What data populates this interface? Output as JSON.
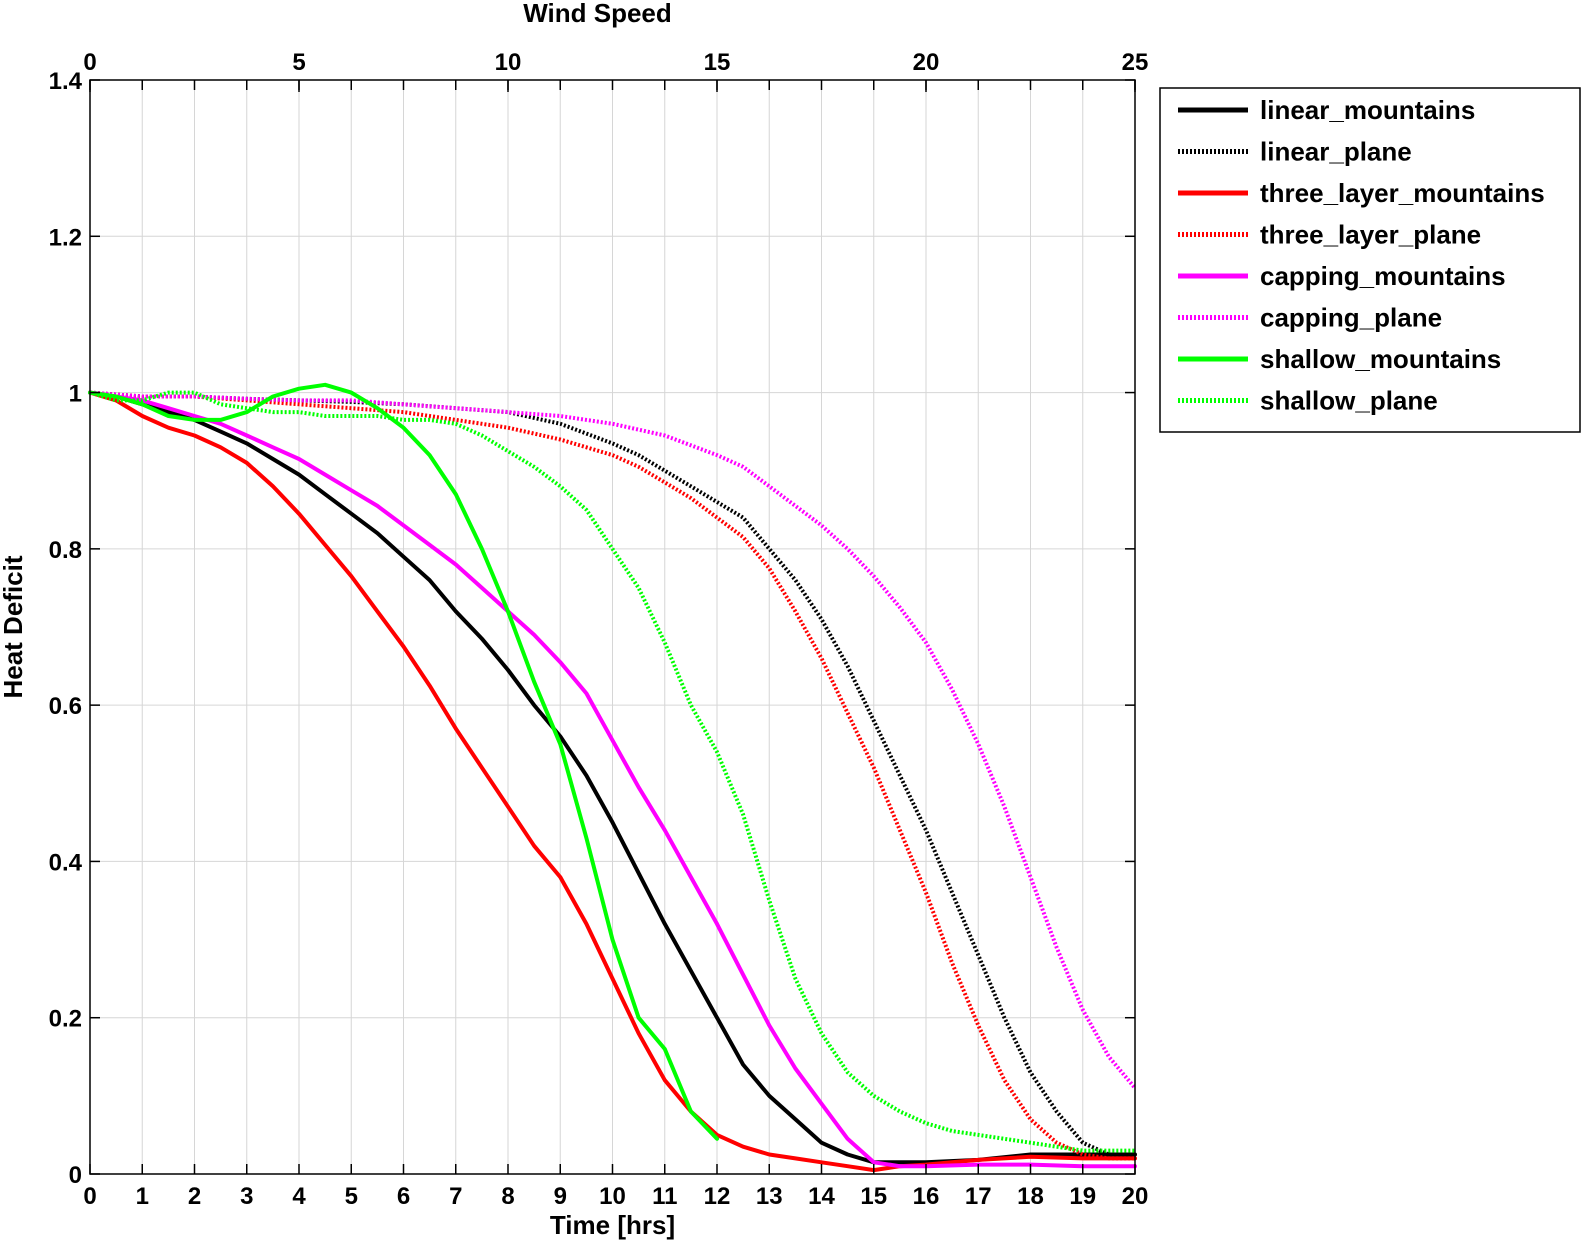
{
  "chart_data": {
    "type": "line",
    "xlabel": "Time [hrs]",
    "ylabel": "Heat Deficit",
    "x2label": "Wind Speed",
    "xlim": [
      0,
      20
    ],
    "ylim": [
      0,
      1.4
    ],
    "x2lim": [
      0,
      25
    ],
    "xticks": [
      "0",
      "1",
      "2",
      "3",
      "4",
      "5",
      "6",
      "7",
      "8",
      "9",
      "10",
      "11",
      "12",
      "13",
      "14",
      "15",
      "16",
      "17",
      "18",
      "19",
      "20"
    ],
    "yticks": [
      "0",
      "0.2",
      "0.4",
      "0.6",
      "0.8",
      "1",
      "1.2",
      "1.4"
    ],
    "x2ticks": [
      "0",
      "5",
      "10",
      "15",
      "20",
      "25"
    ],
    "grid": true,
    "legend_position": "outside-top-right",
    "series": [
      {
        "name": "linear_mountains",
        "color": "#000000",
        "style": "solid",
        "x": [
          0,
          0.5,
          1,
          1.5,
          2,
          2.5,
          3,
          3.5,
          4,
          4.5,
          5,
          5.5,
          6,
          6.5,
          7,
          7.5,
          8,
          8.5,
          9,
          9.5,
          10,
          10.5,
          11,
          11.5,
          12,
          12.5,
          13,
          13.5,
          14,
          14.5,
          15,
          16,
          17,
          18,
          19,
          20
        ],
        "y": [
          1.0,
          0.995,
          0.985,
          0.975,
          0.965,
          0.95,
          0.935,
          0.915,
          0.895,
          0.87,
          0.845,
          0.82,
          0.79,
          0.76,
          0.72,
          0.685,
          0.645,
          0.6,
          0.56,
          0.51,
          0.45,
          0.385,
          0.32,
          0.26,
          0.2,
          0.14,
          0.1,
          0.07,
          0.04,
          0.025,
          0.015,
          0.015,
          0.018,
          0.025,
          0.025,
          0.025
        ]
      },
      {
        "name": "linear_plane",
        "color": "#000000",
        "style": "dotted",
        "x": [
          0,
          1,
          2,
          3,
          4,
          5,
          6,
          7,
          8,
          9,
          10,
          10.5,
          11,
          11.5,
          12,
          12.5,
          13,
          13.5,
          14,
          14.5,
          15,
          15.5,
          16,
          16.5,
          17,
          17.5,
          18,
          18.5,
          19,
          19.5,
          20
        ],
        "y": [
          1.0,
          0.995,
          0.995,
          0.992,
          0.99,
          0.988,
          0.985,
          0.98,
          0.975,
          0.96,
          0.935,
          0.92,
          0.9,
          0.88,
          0.86,
          0.84,
          0.8,
          0.76,
          0.71,
          0.65,
          0.58,
          0.51,
          0.44,
          0.36,
          0.28,
          0.2,
          0.13,
          0.08,
          0.04,
          0.025,
          0.02
        ]
      },
      {
        "name": "three_layer_mountains",
        "color": "#ff0000",
        "style": "solid",
        "x": [
          0,
          0.5,
          1,
          1.5,
          2,
          2.5,
          3,
          3.5,
          4,
          4.5,
          5,
          5.5,
          6,
          6.5,
          7,
          7.5,
          8,
          8.5,
          9,
          9.5,
          10,
          10.5,
          11,
          11.5,
          12,
          12.5,
          13,
          13.5,
          14,
          14.5,
          15,
          15.5,
          16,
          17,
          18,
          19,
          20
        ],
        "y": [
          1.0,
          0.99,
          0.97,
          0.955,
          0.945,
          0.93,
          0.91,
          0.88,
          0.845,
          0.805,
          0.765,
          0.72,
          0.675,
          0.625,
          0.57,
          0.52,
          0.47,
          0.42,
          0.38,
          0.32,
          0.25,
          0.18,
          0.12,
          0.08,
          0.05,
          0.035,
          0.025,
          0.02,
          0.015,
          0.01,
          0.005,
          0.01,
          0.012,
          0.018,
          0.022,
          0.02,
          0.02
        ]
      },
      {
        "name": "three_layer_plane",
        "color": "#ff0000",
        "style": "dotted",
        "x": [
          0,
          1,
          2,
          3,
          4,
          5,
          6,
          7,
          8,
          9,
          10,
          10.5,
          11,
          11.5,
          12,
          12.5,
          13,
          13.5,
          14,
          14.5,
          15,
          15.5,
          16,
          16.5,
          17,
          17.5,
          18,
          18.5,
          19,
          19.5,
          20
        ],
        "y": [
          1.0,
          0.995,
          0.995,
          0.99,
          0.985,
          0.98,
          0.975,
          0.965,
          0.955,
          0.94,
          0.92,
          0.905,
          0.885,
          0.865,
          0.84,
          0.815,
          0.775,
          0.72,
          0.66,
          0.59,
          0.52,
          0.44,
          0.36,
          0.27,
          0.19,
          0.12,
          0.07,
          0.04,
          0.025,
          0.02,
          0.02
        ]
      },
      {
        "name": "capping_mountains",
        "color": "#ff00ff",
        "style": "solid",
        "x": [
          0,
          0.5,
          1,
          1.5,
          2,
          2.5,
          3,
          3.5,
          4,
          4.5,
          5,
          5.5,
          6,
          6.5,
          7,
          7.5,
          8,
          8.5,
          9,
          9.5,
          10,
          10.5,
          11,
          11.5,
          12,
          12.5,
          13,
          13.5,
          14,
          14.5,
          15,
          15.5,
          16,
          17,
          18,
          19,
          20
        ],
        "y": [
          1.0,
          0.995,
          0.99,
          0.98,
          0.97,
          0.96,
          0.945,
          0.93,
          0.915,
          0.895,
          0.875,
          0.855,
          0.83,
          0.805,
          0.78,
          0.75,
          0.72,
          0.69,
          0.655,
          0.615,
          0.555,
          0.495,
          0.44,
          0.38,
          0.32,
          0.255,
          0.19,
          0.135,
          0.09,
          0.045,
          0.015,
          0.01,
          0.01,
          0.012,
          0.012,
          0.01,
          0.01
        ]
      },
      {
        "name": "capping_plane",
        "color": "#ff00ff",
        "style": "dotted",
        "x": [
          0,
          1,
          2,
          3,
          4,
          5,
          6,
          7,
          8,
          9,
          10,
          11,
          12,
          12.5,
          13,
          13.5,
          14,
          14.5,
          15,
          15.5,
          16,
          16.5,
          17,
          17.5,
          18,
          18.5,
          19,
          19.5,
          20
        ],
        "y": [
          1.0,
          0.995,
          0.995,
          0.992,
          0.99,
          0.99,
          0.985,
          0.98,
          0.975,
          0.97,
          0.96,
          0.945,
          0.92,
          0.905,
          0.88,
          0.855,
          0.83,
          0.8,
          0.765,
          0.725,
          0.68,
          0.62,
          0.55,
          0.47,
          0.38,
          0.29,
          0.21,
          0.15,
          0.11
        ]
      },
      {
        "name": "shallow_mountains",
        "color": "#00ff00",
        "style": "solid",
        "x": [
          0,
          0.5,
          1,
          1.5,
          2,
          2.5,
          3,
          3.5,
          4,
          4.5,
          5,
          5.5,
          6,
          6.5,
          7,
          7.5,
          8,
          8.5,
          9,
          9.5,
          10,
          10.5,
          11,
          11.5,
          12
        ],
        "y": [
          1.0,
          0.995,
          0.985,
          0.97,
          0.965,
          0.965,
          0.975,
          0.995,
          1.005,
          1.01,
          1.0,
          0.98,
          0.955,
          0.92,
          0.87,
          0.8,
          0.72,
          0.63,
          0.55,
          0.43,
          0.3,
          0.2,
          0.16,
          0.08,
          0.045
        ]
      },
      {
        "name": "shallow_plane",
        "color": "#00ff00",
        "style": "dotted",
        "x": [
          0,
          0.5,
          1,
          1.5,
          2,
          2.5,
          3,
          3.5,
          4,
          4.5,
          5,
          5.5,
          6,
          6.5,
          7,
          7.5,
          8,
          8.5,
          9,
          9.5,
          10,
          10.5,
          11,
          11.5,
          12,
          12.5,
          13,
          13.5,
          14,
          14.5,
          15,
          15.5,
          16,
          16.5,
          17,
          17.5,
          18,
          18.5,
          19,
          19.5,
          20
        ],
        "y": [
          1.0,
          0.99,
          0.99,
          1.0,
          1.0,
          0.985,
          0.98,
          0.975,
          0.975,
          0.97,
          0.97,
          0.97,
          0.965,
          0.965,
          0.96,
          0.945,
          0.925,
          0.905,
          0.88,
          0.85,
          0.8,
          0.75,
          0.68,
          0.6,
          0.54,
          0.46,
          0.35,
          0.25,
          0.18,
          0.13,
          0.1,
          0.08,
          0.065,
          0.055,
          0.05,
          0.045,
          0.04,
          0.035,
          0.03,
          0.03,
          0.03
        ]
      }
    ]
  }
}
